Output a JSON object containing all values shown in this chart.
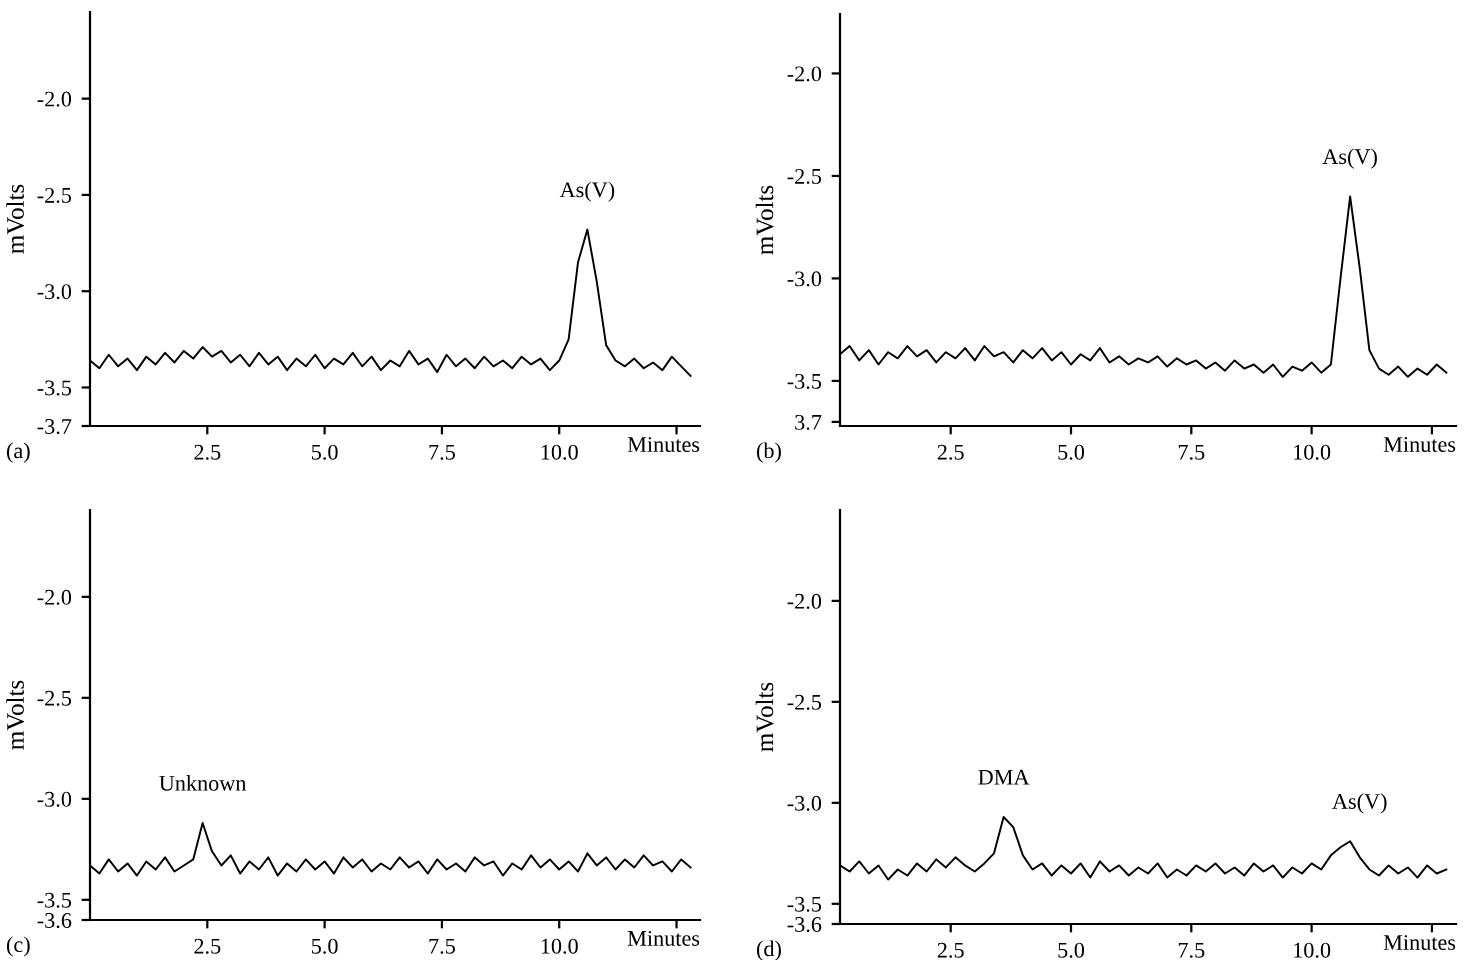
{
  "chart_data": [
    {
      "type": "line",
      "ylabel": "mVolts",
      "xlabel": "Minutes",
      "xlim": [
        0,
        13
      ],
      "ylim": [
        -3.7,
        -1.55
      ],
      "xticks": [
        {
          "value": 2.5,
          "label": "2.5"
        },
        {
          "value": 5,
          "label": "5.0"
        },
        {
          "value": 7.5,
          "label": "7.5"
        },
        {
          "value": 10,
          "label": "10.0"
        },
        {
          "value": 12.5,
          "label": null
        }
      ],
      "yticks": [
        {
          "value": -2,
          "label": "-2.0"
        },
        -2.5,
        {
          "value": -3,
          "label": "-3.0"
        },
        -3.5,
        -3.7
      ],
      "x": [
        0.0,
        0.2,
        0.4,
        0.6,
        0.8,
        1.0,
        1.2,
        1.4,
        1.6,
        1.8,
        2.0,
        2.2,
        2.4,
        2.6,
        2.8,
        3.0,
        3.2,
        3.4,
        3.6,
        3.8,
        4.0,
        4.2,
        4.4,
        4.6,
        4.8,
        5.0,
        5.2,
        5.4,
        5.6,
        5.8,
        6.0,
        6.2,
        6.4,
        6.6,
        6.8,
        7.0,
        7.2,
        7.4,
        7.6,
        7.8,
        8.0,
        8.2,
        8.4,
        8.6,
        8.8,
        9.0,
        9.2,
        9.4,
        9.6,
        9.8,
        10.0,
        10.2,
        10.4,
        10.6,
        10.8,
        11.0,
        11.2,
        11.4,
        11.6,
        11.8,
        12.0,
        12.2,
        12.4,
        12.6,
        12.8
      ],
      "series": [
        {
          "color": "#000000",
          "values": [
            -3.36,
            -3.4,
            -3.33,
            -3.39,
            -3.35,
            -3.41,
            -3.34,
            -3.38,
            -3.32,
            -3.37,
            -3.31,
            -3.35,
            -3.29,
            -3.34,
            -3.31,
            -3.37,
            -3.33,
            -3.39,
            -3.32,
            -3.38,
            -3.34,
            -3.41,
            -3.35,
            -3.39,
            -3.33,
            -3.4,
            -3.35,
            -3.38,
            -3.32,
            -3.39,
            -3.34,
            -3.41,
            -3.36,
            -3.39,
            -3.31,
            -3.38,
            -3.35,
            -3.42,
            -3.33,
            -3.39,
            -3.35,
            -3.4,
            -3.34,
            -3.39,
            -3.36,
            -3.4,
            -3.34,
            -3.38,
            -3.35,
            -3.41,
            -3.36,
            -3.25,
            -2.85,
            -2.68,
            -2.95,
            -3.28,
            -3.36,
            -3.39,
            -3.35,
            -3.4,
            -3.37,
            -3.41,
            -3.34,
            -3.39,
            -3.44
          ]
        }
      ],
      "annotations": [
        "(a)",
        {
          "text": "As(V)",
          "x": 10.6,
          "y": -2.68
        }
      ]
    },
    {
      "type": "line",
      "ylabel": "mVolts",
      "xlabel": "Minutes",
      "xlim": [
        0.2,
        13
      ],
      "ylim": [
        -3.72,
        -1.71
      ],
      "xticks": [
        {
          "value": 2.5,
          "label": "2.5"
        },
        {
          "value": 5,
          "label": "5.0"
        },
        {
          "value": 7.5,
          "label": "7.5"
        },
        {
          "value": 10,
          "label": "10.0"
        },
        {
          "value": 12.5,
          "label": null
        }
      ],
      "yticks": [
        {
          "value": -2,
          "label": "-2.0"
        },
        -2.5,
        {
          "value": -3,
          "label": "-3.0"
        },
        -3.5,
        {
          "value": -3.7,
          "label": "3.7"
        }
      ],
      "x": [
        0.2,
        0.4,
        0.6,
        0.8,
        1.0,
        1.2,
        1.4,
        1.6,
        1.8,
        2.0,
        2.2,
        2.4,
        2.6,
        2.8,
        3.0,
        3.2,
        3.4,
        3.6,
        3.8,
        4.0,
        4.2,
        4.4,
        4.6,
        4.8,
        5.0,
        5.2,
        5.4,
        5.6,
        5.8,
        6.0,
        6.2,
        6.4,
        6.6,
        6.8,
        7.0,
        7.2,
        7.4,
        7.6,
        7.8,
        8.0,
        8.2,
        8.4,
        8.6,
        8.8,
        9.0,
        9.2,
        9.4,
        9.6,
        9.8,
        10.0,
        10.2,
        10.4,
        10.6,
        10.8,
        11.0,
        11.2,
        11.4,
        11.6,
        11.8,
        12.0,
        12.2,
        12.4,
        12.6,
        12.8
      ],
      "series": [
        {
          "color": "#000000",
          "values": [
            -3.37,
            -3.33,
            -3.4,
            -3.35,
            -3.42,
            -3.36,
            -3.39,
            -3.33,
            -3.38,
            -3.35,
            -3.41,
            -3.36,
            -3.39,
            -3.34,
            -3.4,
            -3.33,
            -3.38,
            -3.36,
            -3.41,
            -3.35,
            -3.39,
            -3.34,
            -3.4,
            -3.36,
            -3.42,
            -3.37,
            -3.4,
            -3.34,
            -3.41,
            -3.38,
            -3.42,
            -3.39,
            -3.41,
            -3.38,
            -3.43,
            -3.39,
            -3.42,
            -3.4,
            -3.44,
            -3.41,
            -3.45,
            -3.4,
            -3.44,
            -3.42,
            -3.46,
            -3.42,
            -3.48,
            -3.43,
            -3.45,
            -3.41,
            -3.46,
            -3.42,
            -3.0,
            -2.6,
            -2.95,
            -3.35,
            -3.44,
            -3.47,
            -3.43,
            -3.48,
            -3.44,
            -3.47,
            -3.42,
            -3.46
          ]
        }
      ],
      "annotations": [
        "(b)",
        {
          "text": "As(V)",
          "x": 10.8,
          "y": -2.6
        }
      ]
    },
    {
      "type": "line",
      "ylabel": "mVolts",
      "xlabel": "Minutes",
      "xlim": [
        0,
        13
      ],
      "ylim": [
        -3.6,
        -1.57
      ],
      "xticks": [
        {
          "value": 2.5,
          "label": "2.5"
        },
        {
          "value": 5,
          "label": "5.0"
        },
        {
          "value": 7.5,
          "label": "7.5"
        },
        {
          "value": 10,
          "label": "10.0"
        },
        {
          "value": 12.5,
          "label": null
        }
      ],
      "yticks": [
        {
          "value": -2,
          "label": "-2.0"
        },
        -2.5,
        {
          "value": -3,
          "label": "-3.0"
        },
        -3.5,
        -3.6
      ],
      "x": [
        0.0,
        0.2,
        0.4,
        0.6,
        0.8,
        1.0,
        1.2,
        1.4,
        1.6,
        1.8,
        2.0,
        2.2,
        2.4,
        2.6,
        2.8,
        3.0,
        3.2,
        3.4,
        3.6,
        3.8,
        4.0,
        4.2,
        4.4,
        4.6,
        4.8,
        5.0,
        5.2,
        5.4,
        5.6,
        5.8,
        6.0,
        6.2,
        6.4,
        6.6,
        6.8,
        7.0,
        7.2,
        7.4,
        7.6,
        7.8,
        8.0,
        8.2,
        8.4,
        8.6,
        8.8,
        9.0,
        9.2,
        9.4,
        9.6,
        9.8,
        10.0,
        10.2,
        10.4,
        10.6,
        10.8,
        11.0,
        11.2,
        11.4,
        11.6,
        11.8,
        12.0,
        12.2,
        12.4,
        12.6,
        12.8
      ],
      "series": [
        {
          "color": "#000000",
          "values": [
            -3.33,
            -3.37,
            -3.3,
            -3.36,
            -3.32,
            -3.38,
            -3.31,
            -3.35,
            -3.29,
            -3.36,
            -3.33,
            -3.3,
            -3.12,
            -3.26,
            -3.33,
            -3.28,
            -3.37,
            -3.31,
            -3.35,
            -3.29,
            -3.38,
            -3.32,
            -3.36,
            -3.3,
            -3.35,
            -3.31,
            -3.37,
            -3.29,
            -3.34,
            -3.3,
            -3.36,
            -3.32,
            -3.35,
            -3.29,
            -3.34,
            -3.31,
            -3.37,
            -3.3,
            -3.35,
            -3.32,
            -3.36,
            -3.29,
            -3.33,
            -3.31,
            -3.38,
            -3.32,
            -3.35,
            -3.28,
            -3.34,
            -3.3,
            -3.35,
            -3.31,
            -3.36,
            -3.27,
            -3.33,
            -3.29,
            -3.35,
            -3.3,
            -3.34,
            -3.28,
            -3.33,
            -3.31,
            -3.36,
            -3.3,
            -3.34
          ]
        }
      ],
      "annotations": [
        "(c)",
        {
          "text": "Unknown",
          "x": 2.4,
          "y": -3.12
        }
      ]
    },
    {
      "type": "line",
      "ylabel": "mVolts",
      "xlabel": "Minutes",
      "xlim": [
        0.2,
        13
      ],
      "ylim": [
        -3.6,
        -1.55
      ],
      "xticks": [
        {
          "value": 2.5,
          "label": "2.5"
        },
        {
          "value": 5,
          "label": "5.0"
        },
        {
          "value": 7.5,
          "label": "7.5"
        },
        {
          "value": 10,
          "label": "10.0"
        },
        {
          "value": 12.5,
          "label": null
        }
      ],
      "yticks": [
        {
          "value": -2,
          "label": "-2.0"
        },
        -2.5,
        {
          "value": -3,
          "label": "-3.0"
        },
        -3.5,
        -3.6
      ],
      "x": [
        0.2,
        0.4,
        0.6,
        0.8,
        1.0,
        1.2,
        1.4,
        1.6,
        1.8,
        2.0,
        2.2,
        2.4,
        2.6,
        2.8,
        3.0,
        3.2,
        3.4,
        3.6,
        3.8,
        4.0,
        4.2,
        4.4,
        4.6,
        4.8,
        5.0,
        5.2,
        5.4,
        5.6,
        5.8,
        6.0,
        6.2,
        6.4,
        6.6,
        6.8,
        7.0,
        7.2,
        7.4,
        7.6,
        7.8,
        8.0,
        8.2,
        8.4,
        8.6,
        8.8,
        9.0,
        9.2,
        9.4,
        9.6,
        9.8,
        10.0,
        10.2,
        10.4,
        10.6,
        10.8,
        11.0,
        11.2,
        11.4,
        11.6,
        11.8,
        12.0,
        12.2,
        12.4,
        12.6,
        12.8
      ],
      "series": [
        {
          "color": "#000000",
          "values": [
            -3.31,
            -3.34,
            -3.29,
            -3.35,
            -3.31,
            -3.38,
            -3.33,
            -3.36,
            -3.3,
            -3.34,
            -3.28,
            -3.32,
            -3.27,
            -3.31,
            -3.34,
            -3.3,
            -3.25,
            -3.07,
            -3.12,
            -3.26,
            -3.33,
            -3.3,
            -3.36,
            -3.31,
            -3.35,
            -3.3,
            -3.37,
            -3.29,
            -3.34,
            -3.31,
            -3.36,
            -3.32,
            -3.35,
            -3.3,
            -3.37,
            -3.33,
            -3.36,
            -3.31,
            -3.34,
            -3.3,
            -3.35,
            -3.32,
            -3.36,
            -3.3,
            -3.34,
            -3.31,
            -3.37,
            -3.32,
            -3.35,
            -3.3,
            -3.33,
            -3.26,
            -3.22,
            -3.19,
            -3.27,
            -3.33,
            -3.36,
            -3.31,
            -3.35,
            -3.32,
            -3.37,
            -3.31,
            -3.35,
            -3.33
          ]
        }
      ],
      "annotations": [
        "(d)",
        {
          "text": "DMA",
          "x": 3.6,
          "y": -3.07
        },
        {
          "text": "As(V)",
          "x": 11.0,
          "y": -3.19
        }
      ]
    }
  ]
}
